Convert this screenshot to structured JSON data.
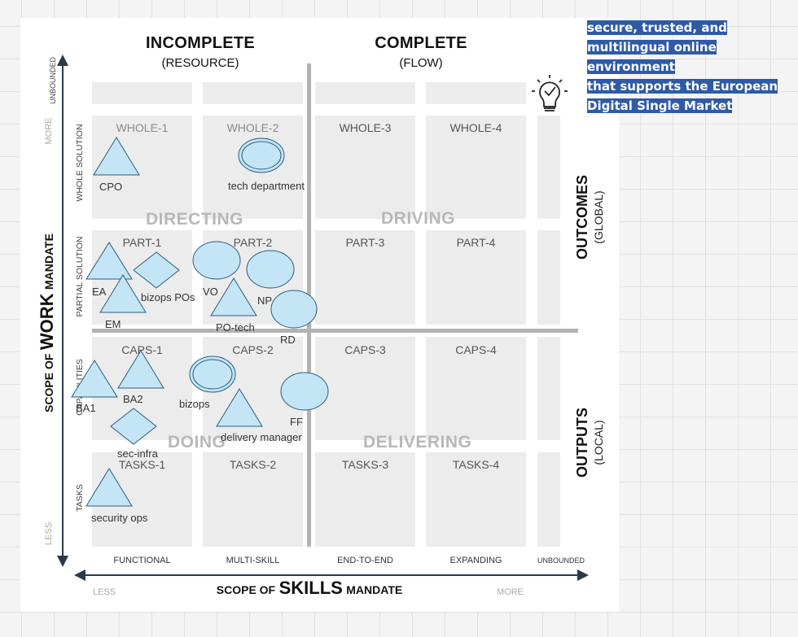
{
  "columns": [
    {
      "title": "INCOMPLETE",
      "subtitle": "(RESOURCE)"
    },
    {
      "title": "COMPLETE",
      "subtitle": "(FLOW)"
    }
  ],
  "rows": {
    "whole": [
      "WHOLE-1",
      "WHOLE-2",
      "WHOLE-3",
      "WHOLE-4"
    ],
    "part": [
      "PART-1",
      "PART-2",
      "PART-3",
      "PART-4"
    ],
    "caps": [
      "CAPS-1",
      "CAPS-2",
      "CAPS-3",
      "CAPS-4"
    ],
    "tasks": [
      "TASKS-1",
      "TASKS-2",
      "TASKS-3",
      "TASKS-4"
    ]
  },
  "zones": {
    "directing": "DIRECTING",
    "driving": "DRIVING",
    "doing": "DOING",
    "delivering": "DELIVERING"
  },
  "x_axis": {
    "ticks": [
      "FUNCTIONAL",
      "MULTI-SKILL",
      "END-TO-END",
      "EXPANDING",
      "UNBOUNDED"
    ],
    "label_prefix": "SCOPE OF",
    "label_big": "SKILLS",
    "label_suffix": "MANDATE",
    "less": "LESS",
    "more": "MORE"
  },
  "y_axis": {
    "ticks": [
      "UNBOUNDED",
      "WHOLE SOLUTION",
      "PARTIAL SOLUTION",
      "CAPABILITIES",
      "TASKS"
    ],
    "label_prefix": "SCOPE OF",
    "label_big": "WORK",
    "label_suffix": "MANDATE",
    "more": "MORE",
    "less": "LESS"
  },
  "right_labels": {
    "outcomes": "OUTCOMES",
    "outcomes_sub": "(GLOBAL)",
    "outputs": "OUTPUTS",
    "outputs_sub": "(LOCAL)"
  },
  "shapes": {
    "cpo": "CPO",
    "tech_department": "tech department",
    "ea": "EA",
    "bizops_pos": "bizops POs",
    "vo": "VO",
    "np": "NP",
    "em": "EM",
    "po_tech": "PO-tech",
    "rd": "RD",
    "ba1": "BA1",
    "ba2": "BA2",
    "bizops": "bizops",
    "ff": "FF",
    "delivery_manager": "delivery manager",
    "sec_infra": "sec-infra",
    "security_ops": "security ops"
  },
  "note": {
    "line1": "secure, trusted, and",
    "line2": "multilingual online",
    "line3": "environment",
    "line4": "that supports the European",
    "line5": "Digital Single Market"
  },
  "icon": "lightbulb-check-icon",
  "colors": {
    "shape_fill": "#c4e5f5",
    "shape_stroke": "#2c5d80",
    "cell_bg": "#ececec",
    "zone_text": "#b8b8b8",
    "divider": "#b3b3b3",
    "note_bg": "#2f5aa6"
  }
}
